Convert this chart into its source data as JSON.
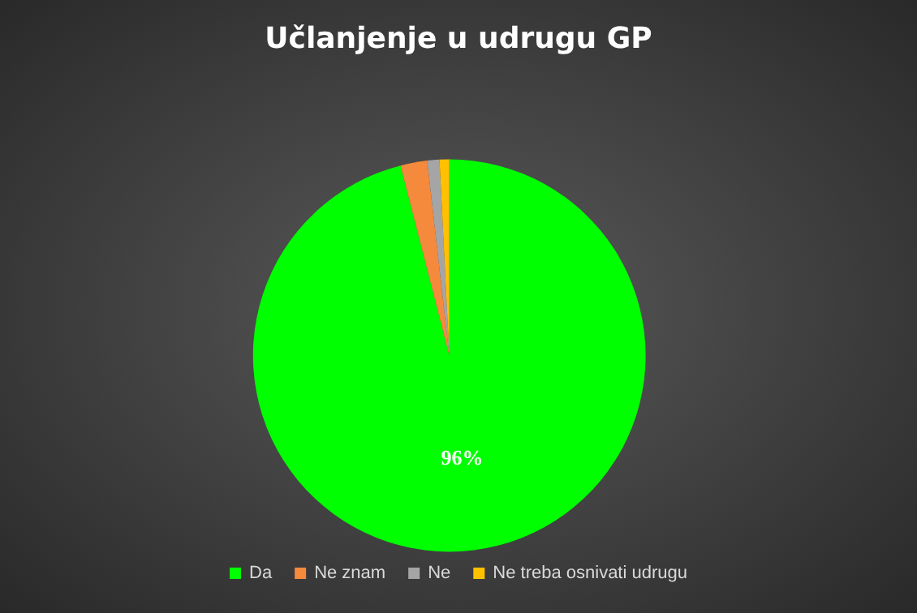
{
  "chart_data": {
    "type": "pie",
    "title": "Učlanjenje u udrugu GP",
    "categories": [
      "Da",
      "Ne znam",
      "Ne",
      "Ne treba osnivati udrugu"
    ],
    "values": [
      96,
      2.2,
      1,
      0.8
    ],
    "colors": [
      "#00ff00",
      "#f58a3c",
      "#a5a5a5",
      "#ffc000"
    ],
    "value_labels": [
      "96%",
      null,
      null,
      null
    ],
    "legend": "bottom"
  }
}
